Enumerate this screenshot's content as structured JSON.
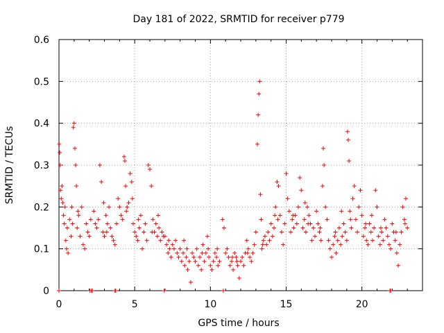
{
  "chart_data": {
    "type": "scatter",
    "title": "Day 181 of 2022, SRMTID for receiver p779",
    "xlabel": "GPS time / hours",
    "ylabel": "SRMTID / TECUs",
    "xlim": [
      0,
      24
    ],
    "ylim": [
      0,
      0.6
    ],
    "x_ticks": [
      0,
      5,
      10,
      15,
      20
    ],
    "x_tick_labels": [
      "0",
      "5",
      "10",
      "15",
      "20"
    ],
    "y_ticks": [
      0,
      0.1,
      0.2,
      0.3,
      0.4,
      0.5,
      0.6
    ],
    "y_tick_labels": [
      "0",
      "0.1",
      "0.2",
      "0.3",
      "0.4",
      "0.5",
      "0.6"
    ],
    "grid": true,
    "marker": "+",
    "color": "#ff0000",
    "series": [
      {
        "name": "SRMTID",
        "points": [
          [
            0.02,
            0.35
          ],
          [
            0.05,
            0.33
          ],
          [
            0.08,
            0.3
          ],
          [
            0.1,
            0.24
          ],
          [
            0.15,
            0.22
          ],
          [
            0.2,
            0.25
          ],
          [
            0.3,
            0.18
          ],
          [
            0.35,
            0.16
          ],
          [
            0.4,
            0.2
          ],
          [
            0.45,
            0.12
          ],
          [
            0.5,
            0.1
          ],
          [
            0.55,
            0.15
          ],
          [
            0.6,
            0.09
          ],
          [
            0.7,
            0.17
          ],
          [
            0.8,
            0.13
          ],
          [
            0.9,
            0.16
          ],
          [
            0.95,
            0.39
          ],
          [
            1.0,
            0.4
          ],
          [
            1.05,
            0.34
          ],
          [
            1.1,
            0.3
          ],
          [
            1.15,
            0.25
          ],
          [
            1.2,
            0.15
          ],
          [
            1.3,
            0.18
          ],
          [
            1.4,
            0.13
          ],
          [
            1.5,
            0.2
          ],
          [
            1.6,
            0.11
          ],
          [
            1.7,
            0.1
          ],
          [
            1.8,
            0.16
          ],
          [
            1.9,
            0.14
          ],
          [
            2.0,
            0.13
          ],
          [
            2.3,
            0.19
          ],
          [
            2.4,
            0.16
          ],
          [
            2.5,
            0.15
          ],
          [
            2.6,
            0.17
          ],
          [
            2.7,
            0.3
          ],
          [
            2.8,
            0.26
          ],
          [
            2.9,
            0.14
          ],
          [
            3.0,
            0.13
          ],
          [
            3.1,
            0.18
          ],
          [
            3.2,
            0.16
          ],
          [
            3.3,
            0.2
          ],
          [
            3.4,
            0.15
          ],
          [
            3.5,
            0.13
          ],
          [
            3.6,
            0.12
          ],
          [
            3.7,
            0.11
          ],
          [
            3.8,
            0.16
          ],
          [
            3.9,
            0.22
          ],
          [
            4.0,
            0.2
          ],
          [
            4.1,
            0.18
          ],
          [
            4.2,
            0.17
          ],
          [
            4.3,
            0.32
          ],
          [
            4.35,
            0.31
          ],
          [
            4.4,
            0.25
          ],
          [
            4.5,
            0.2
          ],
          [
            4.6,
            0.21
          ],
          [
            4.7,
            0.28
          ],
          [
            4.8,
            0.26
          ],
          [
            4.9,
            0.16
          ],
          [
            5.0,
            0.14
          ],
          [
            5.1,
            0.13
          ],
          [
            5.2,
            0.12
          ],
          [
            5.3,
            0.15
          ],
          [
            5.4,
            0.18
          ],
          [
            5.5,
            0.1
          ],
          [
            5.6,
            0.14
          ],
          [
            5.7,
            0.16
          ],
          [
            5.8,
            0.12
          ],
          [
            5.9,
            0.3
          ],
          [
            6.0,
            0.29
          ],
          [
            6.1,
            0.25
          ],
          [
            6.2,
            0.17
          ],
          [
            6.3,
            0.14
          ],
          [
            6.4,
            0.16
          ],
          [
            6.5,
            0.13
          ],
          [
            6.6,
            0.15
          ],
          [
            6.7,
            0.12
          ],
          [
            6.8,
            0.14
          ],
          [
            6.9,
            0.13
          ],
          [
            7.0,
            0.13
          ],
          [
            7.1,
            0.11
          ],
          [
            7.2,
            0.09
          ],
          [
            7.3,
            0.1
          ],
          [
            7.4,
            0.08
          ],
          [
            7.5,
            0.11
          ],
          [
            7.6,
            0.1
          ],
          [
            7.7,
            0.12
          ],
          [
            7.8,
            0.09
          ],
          [
            7.9,
            0.08
          ],
          [
            8.0,
            0.1
          ],
          [
            8.1,
            0.07
          ],
          [
            8.2,
            0.09
          ],
          [
            8.3,
            0.06
          ],
          [
            8.4,
            0.08
          ],
          [
            8.5,
            0.05
          ],
          [
            8.6,
            0.07
          ],
          [
            8.7,
            0.02
          ],
          [
            8.8,
            0.09
          ],
          [
            8.9,
            0.08
          ],
          [
            9.0,
            0.07
          ],
          [
            9.1,
            0.1
          ],
          [
            9.2,
            0.06
          ],
          [
            9.3,
            0.08
          ],
          [
            9.4,
            0.05
          ],
          [
            9.5,
            0.11
          ],
          [
            9.6,
            0.07
          ],
          [
            9.7,
            0.09
          ],
          [
            9.8,
            0.13
          ],
          [
            9.9,
            0.08
          ],
          [
            10.0,
            0.06
          ],
          [
            10.1,
            0.05
          ],
          [
            10.2,
            0.07
          ],
          [
            10.3,
            0.09
          ],
          [
            10.4,
            0.08
          ],
          [
            10.5,
            0.06
          ],
          [
            10.6,
            0.07
          ],
          [
            10.8,
            0.17
          ],
          [
            10.9,
            0.15
          ],
          [
            11.0,
            0.09
          ],
          [
            11.1,
            0.1
          ],
          [
            11.2,
            0.08
          ],
          [
            11.3,
            0.06
          ],
          [
            11.4,
            0.07
          ],
          [
            11.5,
            0.05
          ],
          [
            11.6,
            0.09
          ],
          [
            11.7,
            0.08
          ],
          [
            11.8,
            0.06
          ],
          [
            11.9,
            0.03
          ],
          [
            12.0,
            0.07
          ],
          [
            12.1,
            0.08
          ],
          [
            12.2,
            0.06
          ],
          [
            12.3,
            0.09
          ],
          [
            12.4,
            0.12
          ],
          [
            12.5,
            0.1
          ],
          [
            12.6,
            0.08
          ],
          [
            12.7,
            0.07
          ],
          [
            12.8,
            0.09
          ],
          [
            12.9,
            0.11
          ],
          [
            13.0,
            0.14
          ],
          [
            13.1,
            0.35
          ],
          [
            13.15,
            0.42
          ],
          [
            13.2,
            0.47
          ],
          [
            13.25,
            0.5
          ],
          [
            13.3,
            0.23
          ],
          [
            13.35,
            0.17
          ],
          [
            13.4,
            0.1
          ],
          [
            13.5,
            0.12
          ],
          [
            13.6,
            0.13
          ],
          [
            13.7,
            0.11
          ],
          [
            13.8,
            0.14
          ],
          [
            13.9,
            0.12
          ],
          [
            14.0,
            0.16
          ],
          [
            14.1,
            0.13
          ],
          [
            14.2,
            0.15
          ],
          [
            14.3,
            0.2
          ],
          [
            14.4,
            0.26
          ],
          [
            14.5,
            0.25
          ],
          [
            14.6,
            0.18
          ],
          [
            14.7,
            0.14
          ],
          [
            14.8,
            0.11
          ],
          [
            14.9,
            0.16
          ],
          [
            15.0,
            0.28
          ],
          [
            15.1,
            0.22
          ],
          [
            15.2,
            0.19
          ],
          [
            15.3,
            0.14
          ],
          [
            15.4,
            0.17
          ],
          [
            15.5,
            0.15
          ],
          [
            15.6,
            0.18
          ],
          [
            15.7,
            0.16
          ],
          [
            15.8,
            0.2
          ],
          [
            15.9,
            0.27
          ],
          [
            16.0,
            0.24
          ],
          [
            16.1,
            0.15
          ],
          [
            16.2,
            0.17
          ],
          [
            16.3,
            0.14
          ],
          [
            16.4,
            0.2
          ],
          [
            16.5,
            0.18
          ],
          [
            16.6,
            0.16
          ],
          [
            16.7,
            0.12
          ],
          [
            16.8,
            0.15
          ],
          [
            16.9,
            0.13
          ],
          [
            17.0,
            0.19
          ],
          [
            17.1,
            0.16
          ],
          [
            17.2,
            0.14
          ],
          [
            17.3,
            0.12
          ],
          [
            17.4,
            0.25
          ],
          [
            17.45,
            0.34
          ],
          [
            17.5,
            0.3
          ],
          [
            17.6,
            0.2
          ],
          [
            17.7,
            0.17
          ],
          [
            17.8,
            0.12
          ],
          [
            17.9,
            0.1
          ],
          [
            18.0,
            0.08
          ],
          [
            18.1,
            0.11
          ],
          [
            18.2,
            0.13
          ],
          [
            18.3,
            0.09
          ],
          [
            18.4,
            0.12
          ],
          [
            18.5,
            0.15
          ],
          [
            18.6,
            0.11
          ],
          [
            18.7,
            0.13
          ],
          [
            18.8,
            0.16
          ],
          [
            18.9,
            0.14
          ],
          [
            19.0,
            0.12
          ],
          [
            19.05,
            0.38
          ],
          [
            19.1,
            0.36
          ],
          [
            19.15,
            0.31
          ],
          [
            19.2,
            0.19
          ],
          [
            19.3,
            0.15
          ],
          [
            19.4,
            0.22
          ],
          [
            19.5,
            0.25
          ],
          [
            19.6,
            0.17
          ],
          [
            19.7,
            0.14
          ],
          [
            19.8,
            0.2
          ],
          [
            19.9,
            0.24
          ],
          [
            20.0,
            0.18
          ],
          [
            20.1,
            0.13
          ],
          [
            20.2,
            0.15
          ],
          [
            20.3,
            0.12
          ],
          [
            20.4,
            0.11
          ],
          [
            20.5,
            0.16
          ],
          [
            20.6,
            0.14
          ],
          [
            20.7,
            0.12
          ],
          [
            20.8,
            0.15
          ],
          [
            20.9,
            0.24
          ],
          [
            21.0,
            0.2
          ],
          [
            21.1,
            0.13
          ],
          [
            21.2,
            0.11
          ],
          [
            21.3,
            0.14
          ],
          [
            21.4,
            0.12
          ],
          [
            21.5,
            0.17
          ],
          [
            21.6,
            0.15
          ],
          [
            21.7,
            0.13
          ],
          [
            21.8,
            0.11
          ],
          [
            21.9,
            0.1
          ],
          [
            22.0,
            0.16
          ],
          [
            22.1,
            0.14
          ],
          [
            22.2,
            0.12
          ],
          [
            22.3,
            0.09
          ],
          [
            22.4,
            0.06
          ],
          [
            22.5,
            0.11
          ],
          [
            22.6,
            0.14
          ],
          [
            22.7,
            0.2
          ],
          [
            22.8,
            0.17
          ],
          [
            22.9,
            0.22
          ],
          [
            23.0,
            0.15
          ],
          [
            0.25,
            0.21
          ],
          [
            1.25,
            0.19
          ],
          [
            2.1,
            0.17
          ],
          [
            3.15,
            0.14
          ],
          [
            4.45,
            0.19
          ],
          [
            5.25,
            0.17
          ],
          [
            6.15,
            0.14
          ],
          [
            7.25,
            0.12
          ],
          [
            8.45,
            0.1
          ],
          [
            9.45,
            0.09
          ],
          [
            10.45,
            0.1
          ],
          [
            11.45,
            0.08
          ],
          [
            12.45,
            0.09
          ],
          [
            13.45,
            0.11
          ],
          [
            14.45,
            0.17
          ],
          [
            15.45,
            0.18
          ],
          [
            16.45,
            0.16
          ],
          [
            17.25,
            0.15
          ],
          [
            18.25,
            0.14
          ],
          [
            19.25,
            0.17
          ],
          [
            20.25,
            0.16
          ],
          [
            21.25,
            0.15
          ],
          [
            22.25,
            0.14
          ],
          [
            0.85,
            0.2
          ],
          [
            2.95,
            0.21
          ],
          [
            4.85,
            0.22
          ],
          [
            6.55,
            0.18
          ],
          [
            8.25,
            0.12
          ],
          [
            9.85,
            0.1
          ],
          [
            11.75,
            0.07
          ],
          [
            14.25,
            0.18
          ],
          [
            16.25,
            0.21
          ],
          [
            18.65,
            0.19
          ],
          [
            20.65,
            0.18
          ],
          [
            22.85,
            0.16
          ],
          [
            0.0,
            0.0
          ],
          [
            2.05,
            0.0
          ],
          [
            2.15,
            0.0
          ],
          [
            2.2,
            0.0
          ],
          [
            3.7,
            0.0
          ],
          [
            3.75,
            0.0
          ],
          [
            6.95,
            0.0
          ],
          [
            10.85,
            0.0
          ],
          [
            21.85,
            0.0
          ],
          [
            21.9,
            0.0
          ]
        ]
      }
    ]
  }
}
